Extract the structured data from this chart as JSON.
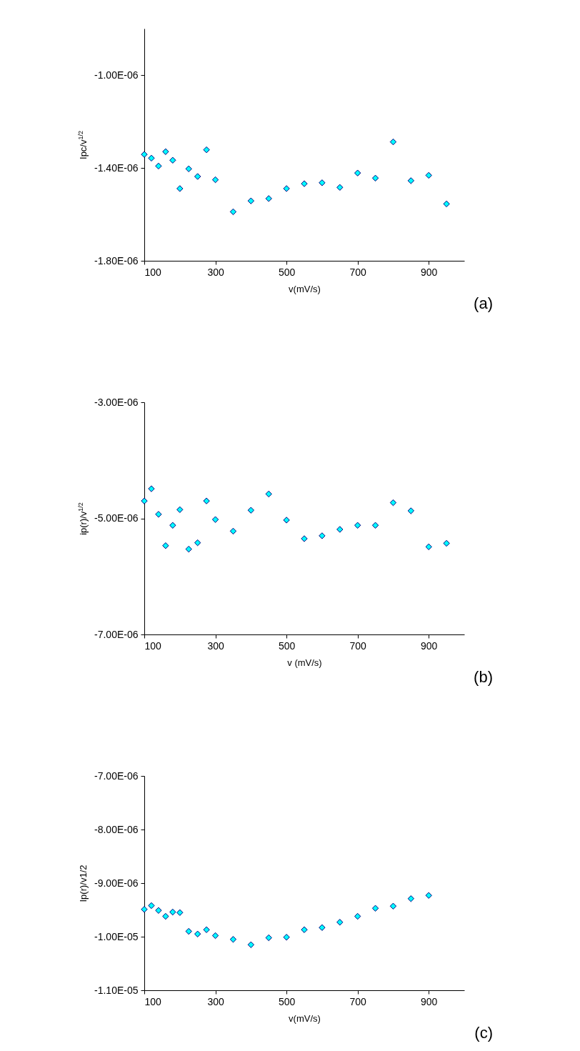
{
  "chart_data": [
    {
      "type": "scatter",
      "xlabel": "v(mV/s)",
      "ylabel": "Ipc/v$^{1/2}$",
      "annotations": [
        "(a)"
      ],
      "marker": "diamond",
      "x": [
        100,
        120,
        140,
        160,
        180,
        200,
        225,
        250,
        275,
        300,
        350,
        400,
        450,
        500,
        550,
        600,
        650,
        700,
        750,
        800,
        850,
        900,
        950
      ],
      "series": [
        {
          "color": "#00ffff",
          "values": [
            -1.342e-06,
            -1.358e-06,
            -1.392e-06,
            -1.33e-06,
            -1.367e-06,
            -1.489e-06,
            -1.404e-06,
            -1.437e-06,
            -1.322e-06,
            -1.451e-06,
            -1.589e-06,
            -1.542e-06,
            -1.532e-06,
            -1.489e-06,
            -1.468e-06,
            -1.464e-06,
            -1.484e-06,
            -1.422e-06,
            -1.444e-06,
            -1.288e-06,
            -1.455e-06,
            -1.432e-06,
            -1.555e-06
          ]
        }
      ],
      "xlim": [
        100,
        1000
      ],
      "xticks": [
        100,
        300,
        500,
        700,
        900
      ],
      "ylim": [
        -1.8e-06,
        -8e-07
      ],
      "yticks": [
        {
          "value": -1.8e-06,
          "label": "-1.80E-06"
        },
        {
          "value": -1.4e-06,
          "label": "-1.40E-06"
        },
        {
          "value": -1e-06,
          "label": "-1.00E-06"
        }
      ]
    },
    {
      "type": "scatter",
      "xlabel": "v (mV/s)",
      "ylabel": "ip(r)/v$^{1/2}$",
      "annotations": [
        "(b)"
      ],
      "marker": "diamond",
      "x": [
        100,
        120,
        140,
        160,
        180,
        200,
        225,
        250,
        275,
        300,
        350,
        400,
        450,
        500,
        550,
        600,
        650,
        700,
        750,
        800,
        850,
        900,
        950
      ],
      "series": [
        {
          "color": "#00ffff",
          "values": [
            -4.7e-06,
            -4.49e-06,
            -4.93e-06,
            -5.47e-06,
            -5.12e-06,
            -4.85e-06,
            -5.53e-06,
            -5.42e-06,
            -4.7e-06,
            -5.02e-06,
            -5.22e-06,
            -4.86e-06,
            -4.58e-06,
            -5.03e-06,
            -5.35e-06,
            -5.3e-06,
            -5.19e-06,
            -5.12e-06,
            -5.12e-06,
            -4.73e-06,
            -4.87e-06,
            -5.49e-06,
            -5.43e-06
          ]
        }
      ],
      "xlim": [
        100,
        1000
      ],
      "xticks": [
        100,
        300,
        500,
        700,
        900
      ],
      "ylim": [
        -7e-06,
        -3e-06
      ],
      "yticks": [
        {
          "value": -7e-06,
          "label": "-7.00E-06"
        },
        {
          "value": -5e-06,
          "label": "-5.00E-06"
        },
        {
          "value": -3e-06,
          "label": "-3.00E-06"
        }
      ]
    },
    {
      "type": "scatter",
      "xlabel": "v(mV/s)",
      "ylabel": "Ip(r)/v1/2",
      "annotations": [
        "(c)"
      ],
      "marker": "diamond",
      "x": [
        100,
        120,
        140,
        160,
        180,
        200,
        225,
        250,
        275,
        300,
        350,
        400,
        450,
        500,
        550,
        600,
        650,
        700,
        750,
        800,
        850,
        900
      ],
      "series": [
        {
          "color": "#00ffff",
          "values": [
            -9.49e-06,
            -9.42e-06,
            -9.51e-06,
            -9.62e-06,
            -9.54e-06,
            -9.55e-06,
            -9.9e-06,
            -9.95e-06,
            -9.87e-06,
            -9.98e-06,
            -1.005e-05,
            -1.015e-05,
            -1.002e-05,
            -1.001e-05,
            -9.87e-06,
            -9.83e-06,
            -9.73e-06,
            -9.62e-06,
            -9.47e-06,
            -9.43e-06,
            -9.29e-06,
            -9.23e-06
          ]
        }
      ],
      "xlim": [
        100,
        1000
      ],
      "xticks": [
        100,
        300,
        500,
        700,
        900
      ],
      "ylim": [
        -1.1e-05,
        -7e-06
      ],
      "yticks": [
        {
          "value": -1.1e-05,
          "label": "-1.10E-05"
        },
        {
          "value": -1e-05,
          "label": "-1.00E-05"
        },
        {
          "value": -9e-06,
          "label": "-9.00E-06"
        },
        {
          "value": -8e-06,
          "label": "-8.00E-06"
        },
        {
          "value": -7e-06,
          "label": "-7.00E-06"
        }
      ]
    }
  ]
}
